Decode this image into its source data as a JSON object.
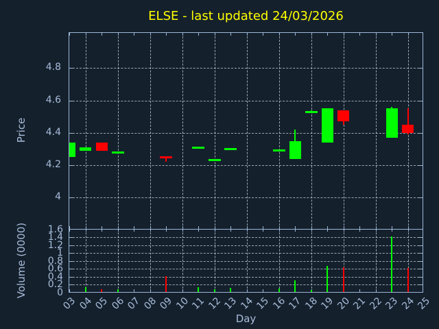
{
  "title": {
    "text": "ELSE - last updated 24/03/2026",
    "color": "#ffff00"
  },
  "axes": {
    "price": {
      "label": "Price",
      "ticks": [
        {
          "label": "4.8",
          "value": 4.8
        },
        {
          "label": "4.6",
          "value": 4.6
        },
        {
          "label": "4.4",
          "value": 4.4
        },
        {
          "label": "4.2",
          "value": 4.2
        },
        {
          "label": "4",
          "value": 4.0
        }
      ]
    },
    "volume": {
      "label": "Volume (0000)",
      "ticks": [
        {
          "label": "1.6",
          "value": 1.6
        },
        {
          "label": "1.4",
          "value": 1.4
        },
        {
          "label": "1.2",
          "value": 1.2
        },
        {
          "label": "1",
          "value": 1.0
        },
        {
          "label": "0.8",
          "value": 0.8
        },
        {
          "label": "0.6",
          "value": 0.6
        },
        {
          "label": "0.4",
          "value": 0.4
        },
        {
          "label": "0.2",
          "value": 0.2
        },
        {
          "label": "0",
          "value": 0.0
        }
      ]
    },
    "day": {
      "label": "Day",
      "ticks": [
        {
          "label": "03",
          "value": 3
        },
        {
          "label": "04",
          "value": 4
        },
        {
          "label": "05",
          "value": 5
        },
        {
          "label": "06",
          "value": 6
        },
        {
          "label": "07",
          "value": 7
        },
        {
          "label": "08",
          "value": 8
        },
        {
          "label": "09",
          "value": 9
        },
        {
          "label": "10",
          "value": 10
        },
        {
          "label": "11",
          "value": 11
        },
        {
          "label": "12",
          "value": 12
        },
        {
          "label": "13",
          "value": 13
        },
        {
          "label": "14",
          "value": 14
        },
        {
          "label": "15",
          "value": 15
        },
        {
          "label": "16",
          "value": 16
        },
        {
          "label": "17",
          "value": 17
        },
        {
          "label": "18",
          "value": 18
        },
        {
          "label": "19",
          "value": 19
        },
        {
          "label": "20",
          "value": 20
        },
        {
          "label": "21",
          "value": 21
        },
        {
          "label": "22",
          "value": 22
        },
        {
          "label": "23",
          "value": 23
        },
        {
          "label": "24",
          "value": 24
        },
        {
          "label": "25",
          "value": 25
        }
      ]
    }
  },
  "chart_data": {
    "type": "candlestick-with-volume",
    "title": "ELSE - last updated 24/03/2026",
    "xlabel": "Day",
    "ylabel_price": "Price",
    "ylabel_volume": "Volume (0000)",
    "x_range": [
      3,
      25
    ],
    "price_range": [
      3.8,
      5.02
    ],
    "volume_range": [
      0,
      1.6
    ],
    "grid": true,
    "up_color": "#00ff00",
    "down_color": "#ff0000",
    "candles": [
      {
        "day": 3,
        "open": 4.25,
        "high": 4.34,
        "low": 4.25,
        "close": 4.34,
        "dir": "up",
        "volume": 0
      },
      {
        "day": 4,
        "open": 4.29,
        "high": 4.31,
        "low": 4.29,
        "close": 4.31,
        "dir": "up",
        "volume": 0.13
      },
      {
        "day": 5,
        "open": 4.34,
        "high": 4.34,
        "low": 4.29,
        "close": 4.29,
        "dir": "down",
        "volume": 0.08
      },
      {
        "day": 6,
        "open": 4.28,
        "high": 4.28,
        "low": 4.28,
        "close": 4.28,
        "dir": "up",
        "volume": 0.09
      },
      {
        "day": 9,
        "open": 4.25,
        "high": 4.25,
        "low": 4.22,
        "close": 4.25,
        "dir": "down",
        "volume": 0.42
      },
      {
        "day": 11,
        "open": 4.31,
        "high": 4.31,
        "low": 4.31,
        "close": 4.31,
        "dir": "up",
        "volume": 0.13
      },
      {
        "day": 12,
        "open": 4.23,
        "high": 4.23,
        "low": 4.23,
        "close": 4.23,
        "dir": "up",
        "volume": 0.09
      },
      {
        "day": 13,
        "open": 4.3,
        "high": 4.3,
        "low": 4.3,
        "close": 4.3,
        "dir": "up",
        "volume": 0.12
      },
      {
        "day": 16,
        "open": 4.29,
        "high": 4.29,
        "low": 4.29,
        "close": 4.29,
        "dir": "up",
        "volume": 0.1
      },
      {
        "day": 17,
        "open": 4.24,
        "high": 4.42,
        "low": 4.24,
        "close": 4.35,
        "dir": "up",
        "volume": 0.32
      },
      {
        "day": 18,
        "open": 4.53,
        "high": 4.54,
        "low": 4.53,
        "close": 4.53,
        "dir": "up",
        "volume": 0.07
      },
      {
        "day": 19,
        "open": 4.34,
        "high": 4.55,
        "low": 4.34,
        "close": 4.55,
        "dir": "up",
        "volume": 0.67
      },
      {
        "day": 20,
        "open": 4.54,
        "high": 4.54,
        "low": 4.45,
        "close": 4.47,
        "dir": "down",
        "volume": 0.64
      },
      {
        "day": 23,
        "open": 4.37,
        "high": 4.56,
        "low": 4.37,
        "close": 4.55,
        "dir": "up",
        "volume": 1.42
      },
      {
        "day": 24,
        "open": 4.45,
        "high": 4.55,
        "low": 4.39,
        "close": 4.4,
        "dir": "down",
        "volume": 0.62
      }
    ]
  },
  "colors": {
    "background": "#15202d",
    "border": "#9db8d6",
    "tick_label": "#a7bdd9",
    "grid": "rgba(210,220,230,0.72)",
    "title": "#ffff00"
  }
}
